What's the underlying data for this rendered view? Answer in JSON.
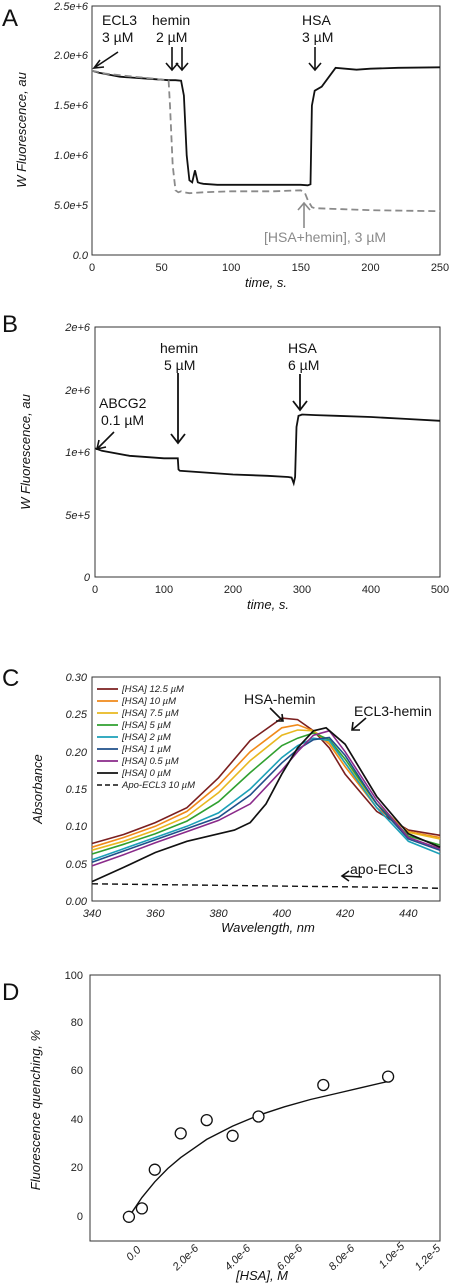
{
  "colors": {
    "hsa_series": [
      "#7b1f1f",
      "#f08a1a",
      "#e8b820",
      "#30a030",
      "#1ca0b8",
      "#1f4f8a",
      "#8a2a8a",
      "#111111"
    ]
  },
  "chart_data": [
    {
      "id": "A",
      "type": "line",
      "panel_label": "A",
      "xlabel": "time, s.",
      "ylabel": "W Fluorescence, au",
      "xlim": [
        0,
        250
      ],
      "ylim": [
        0,
        2500000
      ],
      "xticks": [
        "0",
        "50",
        "100",
        "150",
        "200",
        "250"
      ],
      "yticks": [
        "0.0",
        "5.0e+5",
        "1.0e+6",
        "1.5e+6",
        "2.0e+6",
        "2.5e+6"
      ],
      "series": [
        {
          "style": "solid",
          "x": [
            0,
            5,
            20,
            40,
            50,
            55,
            60,
            64,
            66,
            68,
            70,
            72,
            74,
            76,
            78,
            80,
            90,
            100,
            120,
            140,
            150,
            155,
            157,
            158,
            160,
            165,
            175,
            190,
            200,
            220,
            250
          ],
          "y": [
            1850000,
            1830000,
            1790000,
            1770000,
            1760000,
            1755000,
            1755000,
            1750000,
            1600000,
            1000000,
            750000,
            730000,
            850000,
            730000,
            720000,
            715000,
            705000,
            705000,
            705000,
            705000,
            705000,
            700000,
            710000,
            1500000,
            1650000,
            1690000,
            1880000,
            1860000,
            1870000,
            1880000,
            1885000
          ]
        },
        {
          "style": "dashed",
          "x": [
            0,
            10,
            30,
            45,
            55,
            56,
            58,
            60,
            62,
            64,
            66,
            70,
            80,
            100,
            130,
            150,
            153,
            155,
            158,
            160,
            180,
            200,
            250
          ],
          "y": [
            1850000,
            1820000,
            1790000,
            1770000,
            1750000,
            1500000,
            900000,
            650000,
            630000,
            640000,
            630000,
            620000,
            630000,
            640000,
            640000,
            650000,
            620000,
            550000,
            480000,
            470000,
            460000,
            450000,
            440000
          ]
        }
      ],
      "annotations": [
        {
          "lines": [
            "ECL3",
            "3 µM"
          ],
          "x": 0,
          "y": 1850000
        },
        {
          "lines": [
            "hemin",
            "2 µM"
          ],
          "x": 60,
          "y": 1755000
        },
        {
          "lines": [
            "HSA",
            "3 µM"
          ],
          "x": 158,
          "y": 1880000
        },
        {
          "lines": [
            "[HSA+hemin], 3 µM"
          ],
          "x": 155,
          "y": 470000
        }
      ]
    },
    {
      "id": "B",
      "type": "line",
      "panel_label": "B",
      "xlabel": "time, s.",
      "ylabel": "W Fluorescence, au",
      "xlim": [
        0,
        500
      ],
      "ylim": [
        0,
        2000000
      ],
      "xticks": [
        "0",
        "100",
        "200",
        "300",
        "400",
        "500"
      ],
      "yticks": [
        "0",
        "5e+5",
        "1e+6",
        "2e+6",
        "2e+6",
        "2e+6"
      ],
      "series": [
        {
          "style": "solid",
          "x": [
            0,
            10,
            50,
            100,
            120,
            121,
            123,
            200,
            250,
            280,
            285,
            288,
            290,
            292,
            295,
            298,
            300,
            320,
            350,
            400,
            450,
            500
          ],
          "y": [
            1030000,
            1010000,
            970000,
            950000,
            950000,
            860000,
            850000,
            820000,
            810000,
            800000,
            795000,
            750000,
            800000,
            1200000,
            1290000,
            1295000,
            1300000,
            1295000,
            1290000,
            1280000,
            1265000,
            1250000
          ]
        }
      ],
      "annotations": [
        {
          "lines": [
            "ABCG2",
            "0.1 µM"
          ],
          "x": 0,
          "y": 1030000
        },
        {
          "lines": [
            "hemin",
            "5 µM"
          ],
          "x": 120,
          "y": 850000
        },
        {
          "lines": [
            "HSA",
            "6 µM"
          ],
          "x": 295,
          "y": 1300000
        }
      ]
    },
    {
      "id": "C",
      "type": "line",
      "panel_label": "C",
      "xlabel": "Wavelength, nm",
      "ylabel": "Absorbance",
      "xlim": [
        340,
        450
      ],
      "ylim": [
        0,
        0.3
      ],
      "xticks": [
        "340",
        "360",
        "380",
        "400",
        "420",
        "440"
      ],
      "yticks": [
        "0.00",
        "0.05",
        "0.10",
        "0.15",
        "0.20",
        "0.25",
        "0.30"
      ],
      "legend": [
        "[HSA] 12.5 µM",
        "[HSA] 10 µM",
        "[HSA] 7.5 µM",
        "[HSA] 5 µM",
        "[HSA] 2 µM",
        "[HSA] 1 µM",
        "[HSA] 0.5 µM",
        "[HSA] 0 µM",
        "Apo-ECL3 10 µM"
      ],
      "legend_position": "top-left",
      "series": [
        {
          "name": "[HSA] 12.5 µM",
          "x": [
            340,
            350,
            360,
            370,
            380,
            390,
            400,
            405,
            410,
            415,
            420,
            430,
            440,
            450
          ],
          "y": [
            0.077,
            0.089,
            0.105,
            0.125,
            0.165,
            0.215,
            0.245,
            0.243,
            0.228,
            0.205,
            0.17,
            0.12,
            0.095,
            0.088
          ]
        },
        {
          "name": "[HSA] 10 µM",
          "x": [
            340,
            350,
            360,
            370,
            380,
            390,
            400,
            405,
            410,
            415,
            420,
            430,
            440,
            450
          ],
          "y": [
            0.072,
            0.085,
            0.1,
            0.12,
            0.155,
            0.2,
            0.232,
            0.236,
            0.228,
            0.21,
            0.18,
            0.125,
            0.093,
            0.085
          ]
        },
        {
          "name": "[HSA] 7.5 µM",
          "x": [
            340,
            350,
            360,
            370,
            380,
            390,
            400,
            405,
            410,
            415,
            420,
            430,
            440,
            450
          ],
          "y": [
            0.068,
            0.08,
            0.095,
            0.113,
            0.145,
            0.188,
            0.222,
            0.229,
            0.228,
            0.213,
            0.185,
            0.13,
            0.092,
            0.083
          ]
        },
        {
          "name": "[HSA] 5 µM",
          "x": [
            340,
            350,
            360,
            370,
            380,
            390,
            400,
            405,
            410,
            415,
            420,
            430,
            440,
            450
          ],
          "y": [
            0.063,
            0.076,
            0.09,
            0.107,
            0.133,
            0.172,
            0.208,
            0.218,
            0.225,
            0.216,
            0.19,
            0.13,
            0.087,
            0.075
          ]
        },
        {
          "name": "[HSA] 2 µM",
          "x": [
            340,
            350,
            360,
            370,
            380,
            390,
            400,
            405,
            410,
            415,
            420,
            430,
            440,
            450
          ],
          "y": [
            0.055,
            0.07,
            0.085,
            0.1,
            0.118,
            0.15,
            0.192,
            0.208,
            0.218,
            0.215,
            0.185,
            0.125,
            0.08,
            0.063
          ]
        },
        {
          "name": "[HSA] 1 µM",
          "x": [
            340,
            350,
            360,
            370,
            380,
            390,
            400,
            405,
            410,
            415,
            420,
            430,
            440,
            450
          ],
          "y": [
            0.052,
            0.067,
            0.082,
            0.097,
            0.112,
            0.142,
            0.185,
            0.203,
            0.216,
            0.219,
            0.195,
            0.13,
            0.083,
            0.068
          ]
        },
        {
          "name": "[HSA] 0.5 µM",
          "x": [
            340,
            350,
            360,
            370,
            380,
            390,
            400,
            405,
            410,
            415,
            420,
            430,
            440,
            450
          ],
          "y": [
            0.047,
            0.062,
            0.078,
            0.093,
            0.108,
            0.13,
            0.175,
            0.2,
            0.222,
            0.228,
            0.2,
            0.135,
            0.085,
            0.07
          ]
        },
        {
          "name": "[HSA] 0 µM",
          "x": [
            340,
            350,
            360,
            370,
            380,
            385,
            390,
            395,
            400,
            405,
            410,
            414,
            420,
            430,
            440,
            450
          ],
          "y": [
            0.026,
            0.045,
            0.065,
            0.08,
            0.09,
            0.095,
            0.105,
            0.13,
            0.17,
            0.205,
            0.228,
            0.232,
            0.21,
            0.14,
            0.09,
            0.072
          ]
        },
        {
          "name": "Apo-ECL3 10 µM",
          "style": "dashed",
          "x": [
            340,
            360,
            380,
            400,
            420,
            440,
            450
          ],
          "y": [
            0.023,
            0.022,
            0.021,
            0.02,
            0.019,
            0.018,
            0.017
          ]
        }
      ],
      "annotations": [
        {
          "lines": [
            "HSA-hemin"
          ],
          "x": 402,
          "y": 0.246
        },
        {
          "lines": [
            "ECL3-hemin"
          ],
          "x": 414,
          "y": 0.232
        },
        {
          "lines": [
            "apo-ECL3"
          ],
          "x": 414,
          "y": 0.02
        }
      ]
    },
    {
      "id": "D",
      "type": "scatter",
      "panel_label": "D",
      "xlabel": "[HSA], M",
      "ylabel": "Fluorescence quenching, %",
      "xlim": [
        -1.5e-06,
        1.2e-05
      ],
      "ylim": [
        -10,
        100
      ],
      "xticks": [
        "0.0",
        "2.0e-6",
        "4.0e-6",
        "6.0e-6",
        "8.0e-6",
        "1.0e-5",
        "1.2e-5"
      ],
      "yticks": [
        "0",
        "20",
        "40",
        "60",
        "80",
        "100"
      ],
      "points": {
        "x": [
          0,
          5e-07,
          1e-06,
          2e-06,
          3e-06,
          4e-06,
          5e-06,
          7.5e-06,
          1e-05
        ],
        "y": [
          0,
          3.5,
          19.5,
          34.5,
          40,
          33.5,
          41.5,
          54.5,
          58
        ]
      },
      "fit": {
        "x": [
          0,
          5e-07,
          1e-06,
          1.5e-06,
          2e-06,
          3e-06,
          4e-06,
          5e-06,
          6e-06,
          7e-06,
          8e-06,
          9e-06,
          1e-05
        ],
        "y": [
          0,
          8,
          14.5,
          20,
          24.5,
          32,
          37.5,
          42,
          45.5,
          48.5,
          51,
          53.5,
          56
        ]
      }
    }
  ]
}
